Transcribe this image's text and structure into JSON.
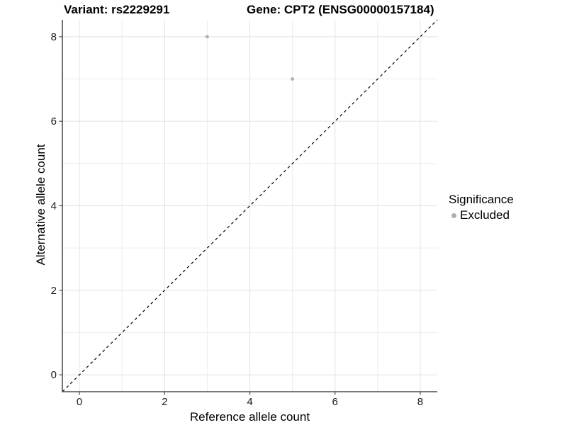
{
  "titles": {
    "variant": "Variant: rs2229291",
    "gene": "Gene: CPT2 (ENSG00000157184)"
  },
  "chart_data": {
    "type": "scatter",
    "xlabel": "Reference allele count",
    "ylabel": "Alternative allele count",
    "xlim": [
      -0.4,
      8.4
    ],
    "ylim": [
      -0.4,
      8.4
    ],
    "xticks": [
      0,
      2,
      4,
      6,
      8
    ],
    "yticks": [
      0,
      2,
      4,
      6,
      8
    ],
    "minor_grid_step": 1,
    "grid": true,
    "reference_line": {
      "kind": "identity",
      "style": "dashed",
      "color": "#000000"
    },
    "series": [
      {
        "name": "Excluded",
        "color": "#aeaeae",
        "points": [
          {
            "x": 3,
            "y": 8
          },
          {
            "x": 5,
            "y": 7
          }
        ]
      }
    ],
    "legend": {
      "title": "Significance",
      "position": "right",
      "items": [
        {
          "label": "Excluded",
          "color": "#aeaeae"
        }
      ]
    },
    "colors": {
      "background": "#ffffff",
      "panel_background": "#ffffff",
      "grid_major": "#e2e2e2",
      "grid_minor": "#ededed",
      "axis_line": "#4d4d4d",
      "tick_label": "#1a1a1a",
      "point": "#aeaeae"
    }
  }
}
